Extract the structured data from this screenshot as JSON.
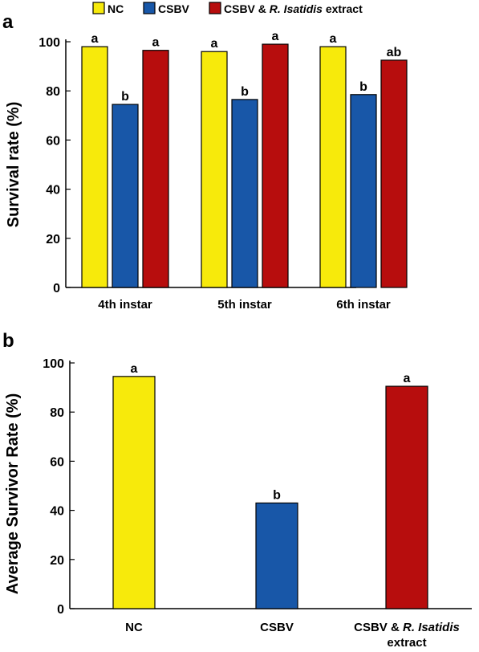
{
  "chart_data": [
    {
      "panel_label": "a",
      "type": "bar",
      "ylabel": "Survival rate (%)",
      "ylim": [
        0,
        100
      ],
      "yticks": [
        0,
        20,
        40,
        60,
        80,
        100
      ],
      "categories": [
        "4th instar",
        "5th instar",
        "6th instar"
      ],
      "legend": {
        "placement": "top"
      },
      "series": [
        {
          "name": "NC",
          "color": "#f7ea0b",
          "values": [
            98,
            96,
            98
          ],
          "letters": [
            "a",
            "a",
            "a"
          ]
        },
        {
          "name": "CSBV",
          "color": "#1857a8",
          "values": [
            74.5,
            76.5,
            78.5
          ],
          "letters": [
            "b",
            "b",
            "b"
          ]
        },
        {
          "name_parts": [
            "CSBV & ",
            "R. Isatidis",
            " extract"
          ],
          "color": "#b70d0d",
          "values": [
            96.5,
            99,
            92.5
          ],
          "letters": [
            "a",
            "a",
            "ab"
          ]
        }
      ]
    },
    {
      "panel_label": "b",
      "type": "bar",
      "ylabel": "Average Survivor Rate (%)",
      "ylim": [
        0,
        100
      ],
      "yticks": [
        0,
        20,
        40,
        60,
        80,
        100
      ],
      "categories": [
        "NC",
        "CSBV",
        "CSBV & R. Isatidis extract"
      ],
      "category_label_lines": [
        [
          [
            "NC"
          ]
        ],
        [
          [
            "CSBV"
          ]
        ],
        [
          [
            "CSBV & ",
            "R. Isatidis"
          ],
          [
            "extract"
          ]
        ]
      ],
      "values": [
        94.5,
        43,
        90.5
      ],
      "colors": [
        "#f7ea0b",
        "#1857a8",
        "#b70d0d"
      ],
      "letters": [
        "a",
        "b",
        "a"
      ]
    }
  ]
}
